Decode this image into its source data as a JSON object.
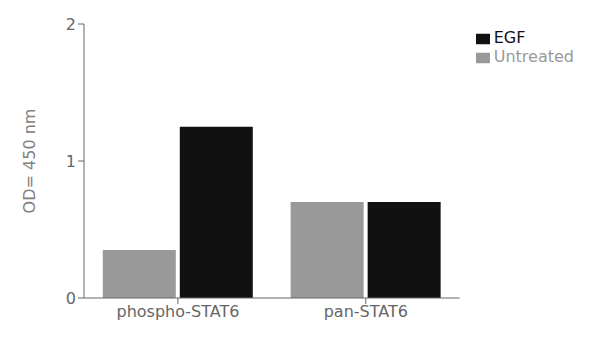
{
  "chart_data": {
    "type": "bar",
    "categories": [
      "phospho-STAT6",
      "pan-STAT6"
    ],
    "series": [
      {
        "name": "Untreated",
        "color": "#999999",
        "values": [
          0.35,
          0.7
        ]
      },
      {
        "name": "EGF",
        "color": "#111111",
        "values": [
          1.25,
          0.7
        ]
      }
    ],
    "ylabel": "OD= 450 nm",
    "ylim": [
      0,
      2
    ],
    "yticks": [
      0,
      1,
      2
    ],
    "grid": false,
    "legend": "right"
  }
}
